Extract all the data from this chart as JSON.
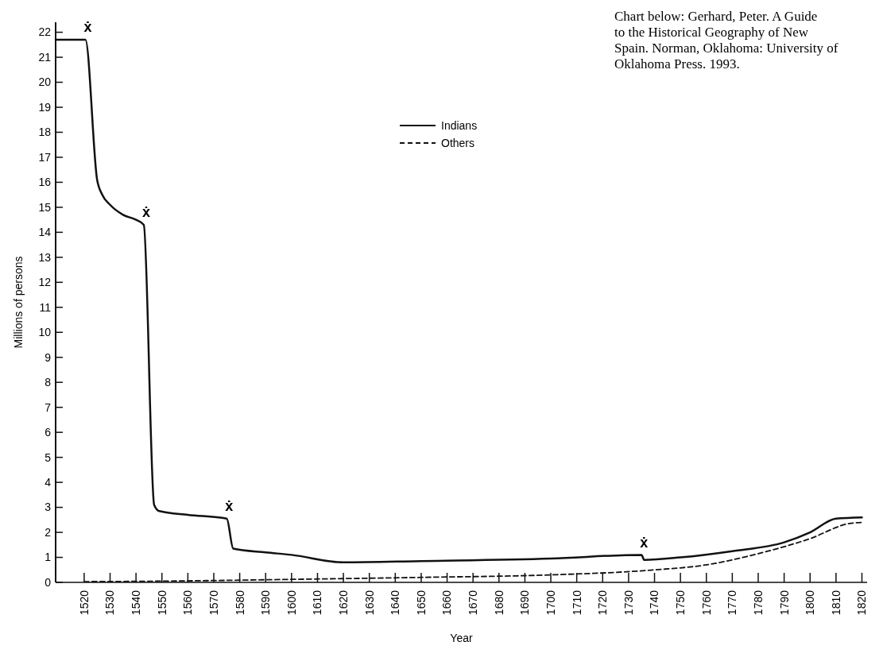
{
  "chart_data": {
    "type": "line",
    "xlabel": "Year",
    "ylabel": "Millions of persons",
    "xlim": [
      1509,
      1822
    ],
    "xticks": [
      1520,
      1530,
      1540,
      1550,
      1560,
      1570,
      1580,
      1590,
      1600,
      1610,
      1620,
      1630,
      1640,
      1650,
      1660,
      1670,
      1680,
      1690,
      1700,
      1710,
      1720,
      1730,
      1740,
      1750,
      1760,
      1770,
      1780,
      1790,
      1800,
      1810,
      1820
    ],
    "ylim": [
      0,
      22.4
    ],
    "yticks": [
      0,
      1,
      2,
      3,
      4,
      5,
      6,
      7,
      8,
      9,
      10,
      11,
      12,
      13,
      14,
      15,
      16,
      17,
      18,
      19,
      20,
      21,
      22
    ],
    "legend": "top right",
    "grid": false,
    "series": [
      {
        "name": "Indians",
        "color": "#111111",
        "line_style": "solid",
        "x": [
          1509,
          1520.5,
          1525,
          1527,
          1530,
          1535,
          1540,
          1543,
          1547,
          1549,
          1560,
          1575,
          1577.5,
          1590,
          1600,
          1620,
          1650,
          1700,
          1735,
          1736,
          1750,
          1770,
          1790,
          1800,
          1810,
          1820
        ],
        "values": [
          21.7,
          21.7,
          16.1,
          15.5,
          15.1,
          14.7,
          14.5,
          14.3,
          3.1,
          2.85,
          2.7,
          2.55,
          1.35,
          1.2,
          1.1,
          0.8,
          0.85,
          0.95,
          1.1,
          0.9,
          1.0,
          1.25,
          1.6,
          2.0,
          2.55,
          2.6
        ]
      },
      {
        "name": "Others",
        "color": "#111111",
        "line_style": "dashed",
        "x": [
          1520,
          1550,
          1600,
          1650,
          1700,
          1740,
          1760,
          1780,
          1800,
          1815,
          1820
        ],
        "values": [
          0.03,
          0.05,
          0.12,
          0.2,
          0.3,
          0.5,
          0.7,
          1.15,
          1.75,
          2.35,
          2.4
        ]
      }
    ],
    "annotations": [
      {
        "text": "ẋ",
        "x": 1520.5,
        "y": 21.7
      },
      {
        "text": "ẋ",
        "x": 1543,
        "y": 14.3
      },
      {
        "text": "ẋ",
        "x": 1575,
        "y": 2.55
      },
      {
        "text": "ẋ",
        "x": 1735,
        "y": 1.1
      },
      "Chart below: Gerhard, Peter. A Guide to the Historical Geography of New Spain. Norman, Oklahoma: University of Oklahoma Press. 1993."
    ]
  }
}
